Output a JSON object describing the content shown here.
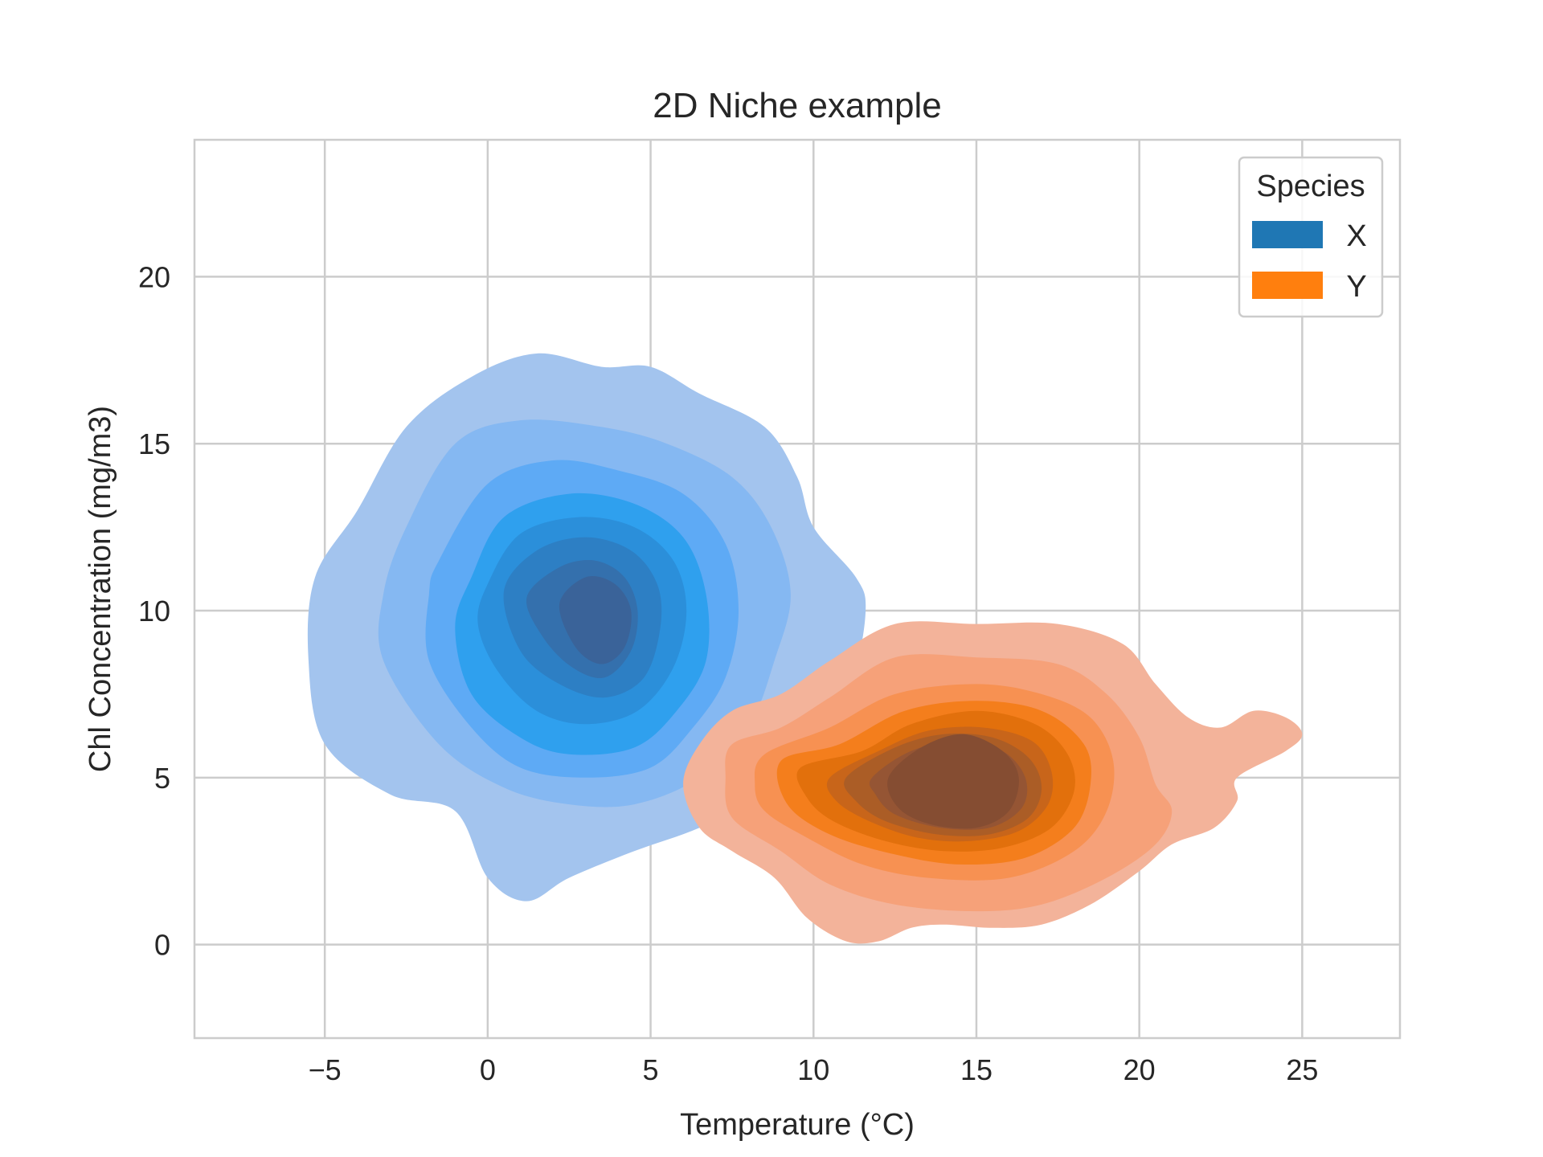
{
  "chart_data": {
    "type": "kde2d",
    "title": "2D Niche example",
    "xlabel": "Temperature (°C)",
    "ylabel": "Chl Concentration (mg/m3)",
    "xlim": [
      -9,
      28
    ],
    "ylim": [
      -2.8,
      24.1
    ],
    "xticks": [
      -5,
      0,
      5,
      10,
      15,
      20,
      25
    ],
    "xtick_labels": [
      "−5",
      "0",
      "5",
      "10",
      "15",
      "20",
      "25"
    ],
    "yticks": [
      0,
      5,
      10,
      15,
      20
    ],
    "ytick_labels": [
      "0",
      "5",
      "10",
      "15",
      "20"
    ],
    "grid": true,
    "legend": {
      "title": "Species",
      "placement": "top-right",
      "entries": [
        {
          "label": "X",
          "color": "#1f77b4"
        },
        {
          "label": "Y",
          "color": "#ff7f0e"
        }
      ]
    },
    "series": [
      {
        "name": "X",
        "colors": [
          "#a3c4ee",
          "#85b8f2",
          "#5eaaf5",
          "#2fa0ee",
          "#2b8fda",
          "#2d7fc4",
          "#3470ad",
          "#3a6399"
        ],
        "levels": [
          [
            [
              -2.5,
              15.5
            ],
            [
              -0.5,
              17.0
            ],
            [
              1.5,
              17.7
            ],
            [
              3.5,
              17.3
            ],
            [
              5.0,
              17.3
            ],
            [
              6.5,
              16.5
            ],
            [
              8.5,
              15.5
            ],
            [
              9.5,
              14.0
            ],
            [
              10.0,
              12.5
            ],
            [
              11.3,
              11.0
            ],
            [
              11.6,
              10.0
            ],
            [
              11.2,
              8.0
            ],
            [
              10.2,
              6.5
            ],
            [
              8.5,
              4.5
            ],
            [
              6.5,
              3.5
            ],
            [
              4.5,
              2.8
            ],
            [
              2.5,
              2.0
            ],
            [
              1.2,
              1.3
            ],
            [
              0.0,
              2.0
            ],
            [
              -1.0,
              4.0
            ],
            [
              -3.0,
              4.5
            ],
            [
              -5.0,
              6.0
            ],
            [
              -5.5,
              8.5
            ],
            [
              -5.3,
              11.0
            ],
            [
              -4.0,
              13.0
            ]
          ],
          [
            [
              -2.5,
              12.5
            ],
            [
              -1.0,
              15.0
            ],
            [
              1.0,
              15.7
            ],
            [
              3.5,
              15.5
            ],
            [
              5.5,
              15.0
            ],
            [
              7.5,
              14.0
            ],
            [
              8.7,
              12.5
            ],
            [
              9.3,
              10.5
            ],
            [
              8.8,
              8.5
            ],
            [
              8.0,
              6.5
            ],
            [
              6.5,
              5.0
            ],
            [
              4.5,
              4.2
            ],
            [
              2.5,
              4.2
            ],
            [
              0.5,
              4.7
            ],
            [
              -1.5,
              6.0
            ],
            [
              -3.2,
              8.5
            ],
            [
              -3.2,
              10.5
            ]
          ],
          [
            [
              -1.5,
              11.5
            ],
            [
              0.0,
              13.8
            ],
            [
              2.0,
              14.5
            ],
            [
              4.0,
              14.2
            ],
            [
              6.0,
              13.5
            ],
            [
              7.3,
              12.0
            ],
            [
              7.7,
              10.0
            ],
            [
              7.3,
              8.0
            ],
            [
              6.3,
              6.5
            ],
            [
              5.0,
              5.3
            ],
            [
              3.0,
              5.0
            ],
            [
              1.0,
              5.3
            ],
            [
              -0.5,
              6.5
            ],
            [
              -1.8,
              8.5
            ],
            [
              -1.8,
              10.5
            ]
          ],
          [
            [
              -0.5,
              11.0
            ],
            [
              0.5,
              12.8
            ],
            [
              2.5,
              13.5
            ],
            [
              4.5,
              13.2
            ],
            [
              6.0,
              12.2
            ],
            [
              6.7,
              10.5
            ],
            [
              6.7,
              8.5
            ],
            [
              5.8,
              7.0
            ],
            [
              4.5,
              5.9
            ],
            [
              2.5,
              5.7
            ],
            [
              1.0,
              6.2
            ],
            [
              -0.5,
              7.5
            ],
            [
              -1.0,
              9.5
            ]
          ],
          [
            [
              0.0,
              10.8
            ],
            [
              1.0,
              12.3
            ],
            [
              2.8,
              12.8
            ],
            [
              4.5,
              12.5
            ],
            [
              5.7,
              11.5
            ],
            [
              6.1,
              10.0
            ],
            [
              5.7,
              8.3
            ],
            [
              4.6,
              7.0
            ],
            [
              3.0,
              6.6
            ],
            [
              1.5,
              7.0
            ],
            [
              0.3,
              8.2
            ],
            [
              -0.3,
              9.6
            ]
          ],
          [
            [
              0.5,
              10.6
            ],
            [
              1.5,
              11.8
            ],
            [
              3.0,
              12.2
            ],
            [
              4.4,
              11.8
            ],
            [
              5.2,
              10.8
            ],
            [
              5.3,
              9.5
            ],
            [
              4.8,
              8.0
            ],
            [
              3.6,
              7.4
            ],
            [
              2.2,
              7.8
            ],
            [
              1.0,
              8.8
            ]
          ],
          [
            [
              1.2,
              10.4
            ],
            [
              2.2,
              11.3
            ],
            [
              3.3,
              11.5
            ],
            [
              4.2,
              11.0
            ],
            [
              4.6,
              10.0
            ],
            [
              4.4,
              8.8
            ],
            [
              3.6,
              8.0
            ],
            [
              2.6,
              8.3
            ],
            [
              1.7,
              9.2
            ]
          ],
          [
            [
              2.2,
              10.2
            ],
            [
              3.0,
              11.0
            ],
            [
              3.9,
              10.8
            ],
            [
              4.4,
              10.0
            ],
            [
              4.2,
              8.9
            ],
            [
              3.5,
              8.4
            ],
            [
              2.7,
              8.9
            ]
          ]
        ]
      },
      {
        "name": "Y",
        "colors": [
          "#f3b39a",
          "#f6a179",
          "#f79152",
          "#f47e1c",
          "#e2700c",
          "#c8651a",
          "#ab5d26",
          "#955534",
          "#854d32"
        ],
        "levels": [
          [
            [
              6.5,
              6.0
            ],
            [
              7.5,
              7.0
            ],
            [
              9.0,
              7.5
            ],
            [
              10.5,
              8.5
            ],
            [
              12.5,
              9.6
            ],
            [
              15.0,
              9.6
            ],
            [
              17.5,
              9.6
            ],
            [
              19.5,
              9.0
            ],
            [
              20.5,
              7.8
            ],
            [
              21.5,
              6.8
            ],
            [
              22.5,
              6.5
            ],
            [
              23.5,
              7.0
            ],
            [
              24.5,
              6.8
            ],
            [
              25.0,
              6.3
            ],
            [
              24.5,
              5.8
            ],
            [
              23.0,
              5.0
            ],
            [
              23.0,
              4.3
            ],
            [
              22.3,
              3.5
            ],
            [
              21.0,
              3.0
            ],
            [
              20.0,
              2.2
            ],
            [
              18.5,
              1.2
            ],
            [
              17.0,
              0.6
            ],
            [
              15.5,
              0.5
            ],
            [
              14.0,
              0.6
            ],
            [
              13.0,
              0.5
            ],
            [
              12.0,
              0.1
            ],
            [
              11.0,
              0.1
            ],
            [
              9.8,
              0.8
            ],
            [
              8.8,
              2.0
            ],
            [
              7.5,
              2.8
            ],
            [
              6.5,
              3.5
            ],
            [
              6.0,
              4.8
            ]
          ],
          [
            [
              7.5,
              6.0
            ],
            [
              9.0,
              6.5
            ],
            [
              10.5,
              7.4
            ],
            [
              12.5,
              8.6
            ],
            [
              15.0,
              8.6
            ],
            [
              17.5,
              8.4
            ],
            [
              19.0,
              7.5
            ],
            [
              20.0,
              6.2
            ],
            [
              20.5,
              4.8
            ],
            [
              21.0,
              4.0
            ],
            [
              20.5,
              3.0
            ],
            [
              19.0,
              2.0
            ],
            [
              17.0,
              1.2
            ],
            [
              15.0,
              1.0
            ],
            [
              12.5,
              1.2
            ],
            [
              10.5,
              1.8
            ],
            [
              9.0,
              2.8
            ],
            [
              7.5,
              3.8
            ],
            [
              7.3,
              5.0
            ]
          ],
          [
            [
              8.5,
              5.7
            ],
            [
              10.5,
              6.5
            ],
            [
              12.5,
              7.5
            ],
            [
              15.0,
              7.8
            ],
            [
              17.0,
              7.5
            ],
            [
              18.5,
              6.8
            ],
            [
              19.2,
              5.5
            ],
            [
              19.0,
              4.0
            ],
            [
              18.0,
              2.8
            ],
            [
              16.0,
              2.0
            ],
            [
              13.5,
              2.0
            ],
            [
              11.5,
              2.4
            ],
            [
              9.8,
              3.2
            ],
            [
              8.5,
              4.0
            ],
            [
              8.2,
              4.8
            ]
          ],
          [
            [
              9.0,
              5.5
            ],
            [
              10.8,
              6.0
            ],
            [
              12.8,
              7.0
            ],
            [
              15.0,
              7.3
            ],
            [
              17.0,
              7.0
            ],
            [
              18.3,
              6.0
            ],
            [
              18.5,
              4.8
            ],
            [
              18.0,
              3.5
            ],
            [
              16.5,
              2.6
            ],
            [
              14.5,
              2.4
            ],
            [
              12.5,
              2.7
            ],
            [
              10.5,
              3.3
            ],
            [
              9.2,
              4.2
            ]
          ],
          [
            [
              9.6,
              5.3
            ],
            [
              11.5,
              5.8
            ],
            [
              13.0,
              6.6
            ],
            [
              15.0,
              7.0
            ],
            [
              16.8,
              6.6
            ],
            [
              17.8,
              5.7
            ],
            [
              18.0,
              4.6
            ],
            [
              17.3,
              3.5
            ],
            [
              15.8,
              2.9
            ],
            [
              14.0,
              2.8
            ],
            [
              12.2,
              3.1
            ],
            [
              10.6,
              3.7
            ],
            [
              9.8,
              4.4
            ]
          ],
          [
            [
              10.5,
              5.0
            ],
            [
              12.0,
              5.8
            ],
            [
              13.5,
              6.4
            ],
            [
              15.2,
              6.5
            ],
            [
              16.7,
              6.1
            ],
            [
              17.3,
              5.2
            ],
            [
              17.2,
              4.2
            ],
            [
              16.3,
              3.4
            ],
            [
              14.8,
              3.1
            ],
            [
              13.2,
              3.2
            ],
            [
              11.7,
              3.7
            ],
            [
              10.7,
              4.3
            ]
          ],
          [
            [
              11.0,
              5.0
            ],
            [
              12.5,
              5.9
            ],
            [
              14.0,
              6.3
            ],
            [
              15.5,
              6.2
            ],
            [
              16.6,
              5.6
            ],
            [
              17.0,
              4.7
            ],
            [
              16.6,
              3.8
            ],
            [
              15.4,
              3.3
            ],
            [
              13.8,
              3.3
            ],
            [
              12.2,
              3.7
            ],
            [
              11.3,
              4.3
            ]
          ],
          [
            [
              11.8,
              5.0
            ],
            [
              13.0,
              5.8
            ],
            [
              14.5,
              6.1
            ],
            [
              15.8,
              5.8
            ],
            [
              16.5,
              5.0
            ],
            [
              16.4,
              4.1
            ],
            [
              15.4,
              3.5
            ],
            [
              13.9,
              3.5
            ],
            [
              12.5,
              3.9
            ],
            [
              11.9,
              4.5
            ]
          ],
          [
            [
              12.3,
              5.0
            ],
            [
              13.3,
              5.9
            ],
            [
              14.6,
              6.3
            ],
            [
              15.8,
              5.8
            ],
            [
              16.3,
              5.0
            ],
            [
              16.0,
              4.0
            ],
            [
              15.0,
              3.5
            ],
            [
              13.6,
              3.6
            ],
            [
              12.6,
              4.1
            ]
          ]
        ]
      }
    ]
  }
}
